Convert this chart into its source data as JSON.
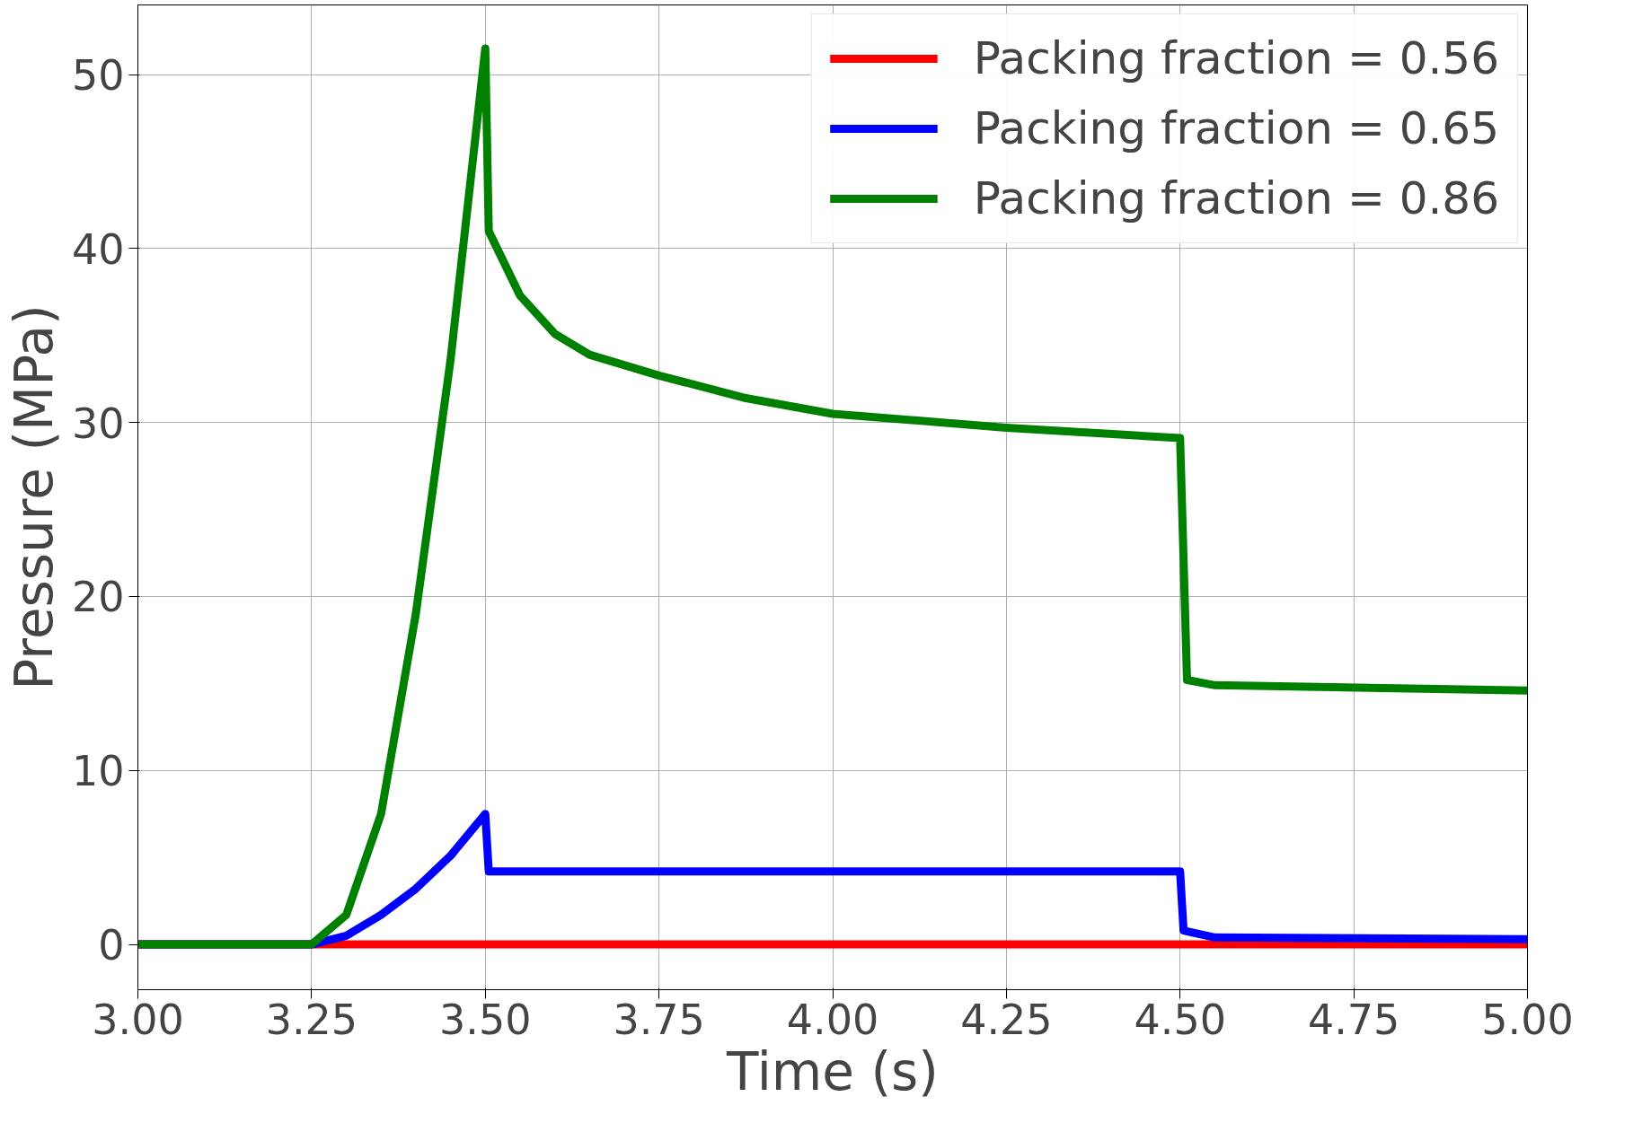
{
  "chart_data": {
    "type": "line",
    "xlabel": "Time (s)",
    "ylabel": "Pressure (MPa)",
    "xlim": [
      3.0,
      5.0
    ],
    "ylim": [
      -2.6,
      54
    ],
    "xticks": [
      {
        "value": 3.0,
        "label": "3.00"
      },
      {
        "value": 3.25,
        "label": "3.25"
      },
      {
        "value": 3.5,
        "label": "3.50"
      },
      {
        "value": 3.75,
        "label": "3.75"
      },
      {
        "value": 4.0,
        "label": "4.00"
      },
      {
        "value": 4.25,
        "label": "4.25"
      },
      {
        "value": 4.5,
        "label": "4.50"
      },
      {
        "value": 4.75,
        "label": "4.75"
      },
      {
        "value": 5.0,
        "label": "5.00"
      }
    ],
    "yticks": [
      0,
      10,
      20,
      30,
      40,
      50
    ],
    "grid": true,
    "legend": "top right",
    "line_style": "solid",
    "series": [
      {
        "name": "Packing fraction = 0.56",
        "color": "#ff0000",
        "x": [
          3.0,
          5.0
        ],
        "values": [
          0,
          0
        ]
      },
      {
        "name": "Packing fraction = 0.65",
        "color": "#0000ff",
        "x": [
          3.0,
          3.25,
          3.3,
          3.35,
          3.4,
          3.45,
          3.5,
          3.505,
          4.5,
          4.505,
          4.55,
          5.0
        ],
        "values": [
          0,
          0,
          0.5,
          1.7,
          3.2,
          5.1,
          7.5,
          4.2,
          4.2,
          0.8,
          0.4,
          0.3
        ]
      },
      {
        "name": "Packing fraction = 0.86",
        "color": "#008000",
        "x": [
          3.0,
          3.25,
          3.3,
          3.35,
          3.4,
          3.45,
          3.5,
          3.505,
          3.55,
          3.6,
          3.65,
          3.75,
          3.875,
          4.0,
          4.25,
          4.5,
          4.51,
          4.55,
          5.0
        ],
        "values": [
          0,
          0,
          1.7,
          7.5,
          19,
          33.6,
          51.5,
          41,
          37.3,
          35.1,
          33.9,
          32.7,
          31.4,
          30.5,
          29.7,
          29.1,
          15.2,
          14.9,
          14.6
        ]
      }
    ]
  }
}
